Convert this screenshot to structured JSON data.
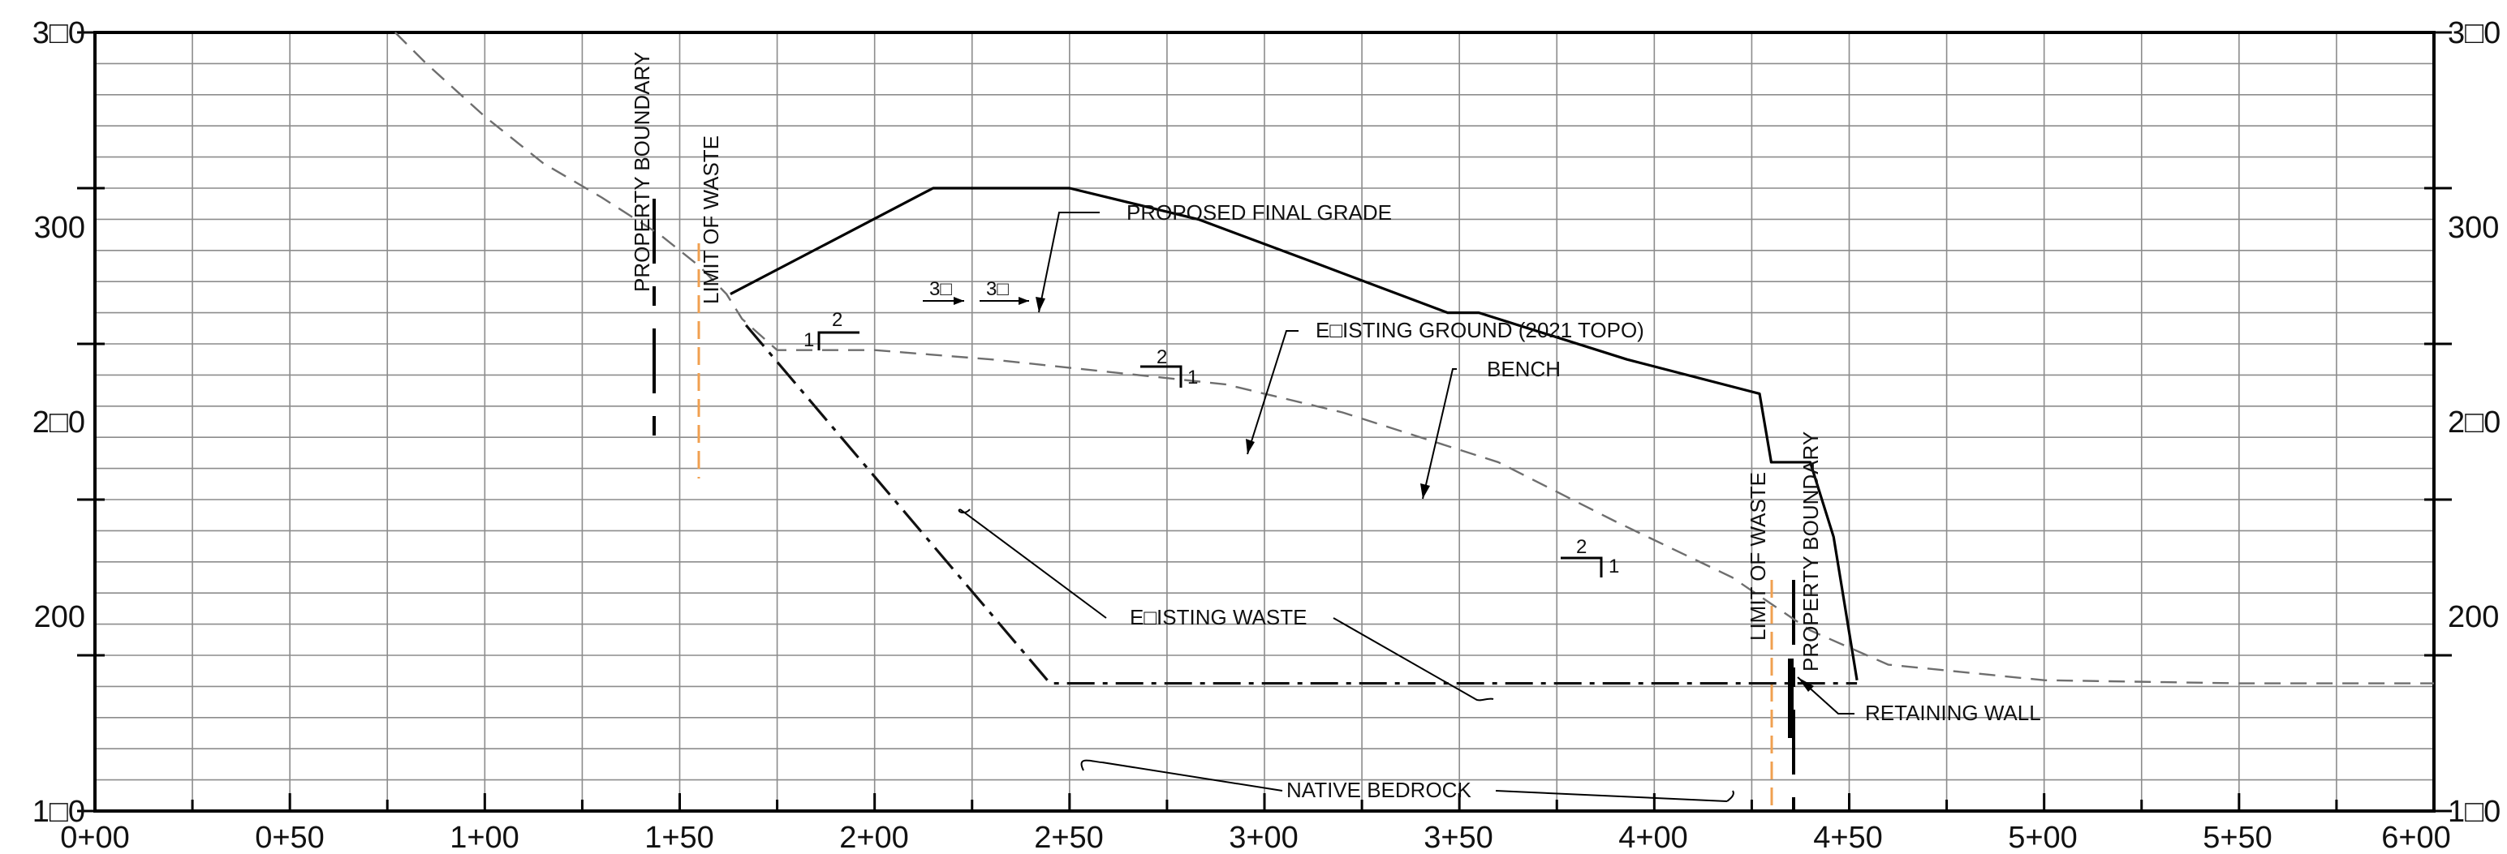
{
  "chart_data": {
    "type": "line",
    "y_ticks": [
      "3□0",
      "300",
      "2□0",
      "200",
      "1□0"
    ],
    "x_ticks": [
      "0+00",
      "0+50",
      "1+00",
      "1+50",
      "2+00",
      "2+50",
      "3+00",
      "3+50",
      "4+00",
      "4+50",
      "5+00",
      "5+50",
      "6+00"
    ],
    "xlim": [
      0,
      600
    ],
    "ylim": [
      100,
      350
    ],
    "grid": true,
    "series": [
      {
        "name": "PROPOSED FINAL GRADE",
        "style": "solid",
        "color": "#000000",
        "x": [
          163,
          215,
          236,
          250,
          283,
          313,
          347,
          355,
          393,
          427,
          430,
          440,
          446,
          452
        ],
        "y": [
          266,
          300,
          300,
          300,
          290,
          276,
          260,
          260,
          245,
          234,
          212,
          212,
          188,
          142
        ]
      },
      {
        "name": "E□ISTING GROUND (2021 TOPO)",
        "style": "dashed",
        "color": "#6e6e6e",
        "x": [
          77,
          85,
          100,
          115,
          130,
          145,
          155,
          162,
          166,
          175,
          200,
          230,
          260,
          290,
          320,
          360,
          390,
          420,
          440,
          460,
          500,
          550,
          600
        ],
        "y": [
          350,
          340,
          323,
          308,
          297,
          285,
          275,
          266,
          258,
          248,
          248,
          245,
          241,
          237,
          228,
          212,
          193,
          175,
          158,
          147,
          142,
          141,
          141
        ]
      },
      {
        "name": "NATIVE BEDROCK",
        "style": "dashdot",
        "color": "#111111",
        "x": [
          167,
          245,
          452
        ],
        "y": [
          256,
          141,
          141
        ]
      }
    ],
    "annotations": {
      "proposed_final_grade": "PROPOSED FINAL GRADE",
      "existing_ground": "E□ISTING GROUND (2021 TOPO)",
      "bench": "BENCH",
      "existing_waste": "E□ISTING WASTE",
      "native_bedrock": "NATIVE BEDROCK",
      "retaining_wall": "RETAINING WALL",
      "property_boundary_left": "PROPERTY BOUNDARY",
      "limit_of_waste_left": "LIMIT OF WASTE",
      "property_boundary_right": "PROPERTY BOUNDARY",
      "limit_of_waste_right": "LIMIT OF WASTE"
    },
    "slope_labels": {
      "s1_rise": "1",
      "s1_run": "2",
      "s2_run": "2",
      "s2_rise": "1",
      "s3_run": "2",
      "s3_rise": "1",
      "crest_left": "3□",
      "crest_right": "3□"
    },
    "colors": {
      "grid": "#8c8c8c",
      "frame": "#000000",
      "proposed": "#000000",
      "existing": "#6e6e6e",
      "limit_of_waste": "#f0a050",
      "boundary": "#000000"
    }
  }
}
